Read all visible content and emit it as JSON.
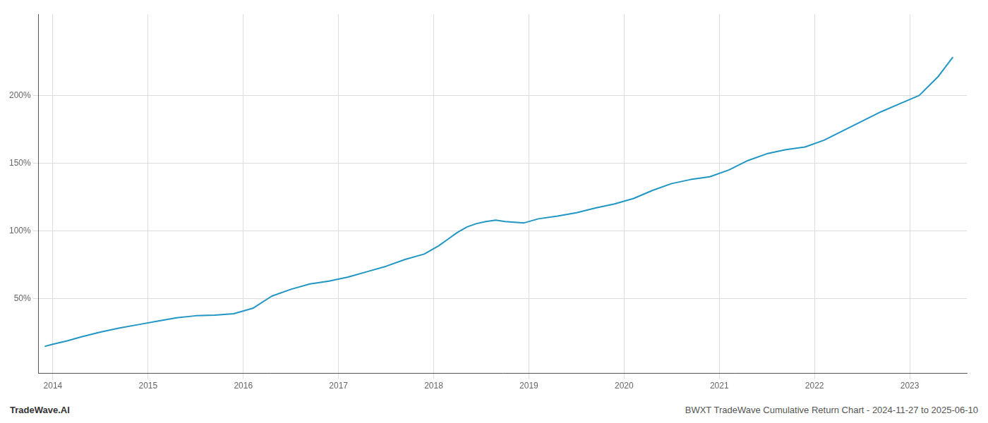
{
  "chart_data": {
    "type": "line",
    "x": [
      2013.92,
      2014.0,
      2014.15,
      2014.3,
      2014.5,
      2014.7,
      2014.9,
      2015.1,
      2015.3,
      2015.5,
      2015.7,
      2015.9,
      2016.1,
      2016.3,
      2016.5,
      2016.7,
      2016.9,
      2017.1,
      2017.3,
      2017.5,
      2017.7,
      2017.9,
      2018.05,
      2018.15,
      2018.25,
      2018.35,
      2018.45,
      2018.55,
      2018.65,
      2018.75,
      2018.85,
      2018.95,
      2019.1,
      2019.3,
      2019.5,
      2019.7,
      2019.9,
      2020.1,
      2020.3,
      2020.5,
      2020.7,
      2020.9,
      2021.1,
      2021.3,
      2021.5,
      2021.7,
      2021.9,
      2022.1,
      2022.3,
      2022.5,
      2022.7,
      2022.9,
      2023.1,
      2023.3,
      2023.45
    ],
    "values": [
      15.0,
      16.5,
      19.0,
      22.0,
      25.5,
      28.5,
      31.0,
      33.5,
      36.0,
      37.5,
      38.0,
      39.0,
      43.0,
      52.0,
      57.0,
      61.0,
      63.0,
      66.0,
      70.0,
      74.0,
      79.0,
      83.0,
      89.0,
      94.0,
      99.0,
      103.0,
      105.5,
      107.0,
      108.0,
      107.0,
      106.5,
      106.0,
      109.0,
      111.0,
      113.5,
      117.0,
      120.0,
      124.0,
      130.0,
      135.0,
      138.0,
      140.0,
      145.0,
      152.0,
      157.0,
      160.0,
      162.0,
      167.0,
      174.0,
      181.0,
      188.0,
      194.0,
      200.0,
      214.0,
      228.0
    ],
    "color": "#2196c4",
    "xlim": [
      2013.85,
      2023.6
    ],
    "ylim": [
      -5,
      260
    ],
    "xticks": [
      2014,
      2015,
      2016,
      2017,
      2018,
      2019,
      2020,
      2021,
      2022,
      2023
    ],
    "yticks": [
      {
        "value": 50,
        "label": "50%"
      },
      {
        "value": 100,
        "label": "100%"
      },
      {
        "value": 150,
        "label": "150%"
      },
      {
        "value": 200,
        "label": "200%"
      }
    ],
    "grid": true,
    "annotations": [
      "TradeWave.AI",
      "BWXT TradeWave Cumulative Return Chart - 2024-11-27 to 2025-06-10"
    ]
  }
}
